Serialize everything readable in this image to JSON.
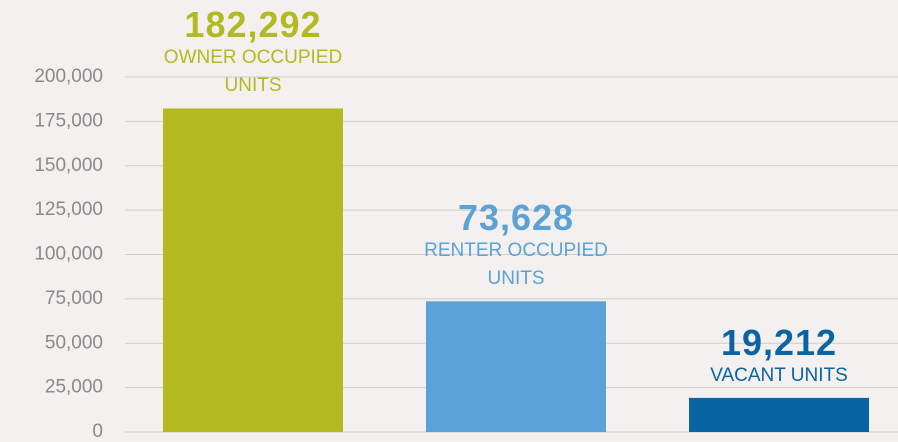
{
  "chart_data": {
    "type": "bar",
    "categories": [
      "OWNER OCCUPIED UNITS",
      "RENTER OCCUPIED UNITS",
      "VACANT UNITS"
    ],
    "values": [
      182292,
      73628,
      19212
    ],
    "value_labels": [
      "182,292",
      "73,628",
      "19,212"
    ],
    "colors": [
      "#b1bb1f",
      "#5ba2d6",
      "#0964a3"
    ],
    "ylim": [
      0,
      200000
    ],
    "yticks": [
      0,
      {
        "value": 25000,
        "label": "25,000"
      },
      {
        "value": 50000,
        "label": "50,000"
      },
      {
        "value": 75000,
        "label": "75,000"
      },
      {
        "value": 100000,
        "label": "100,000"
      },
      {
        "value": 125000,
        "label": "125,000"
      },
      {
        "value": 150000,
        "label": "150,000"
      },
      {
        "value": 175000,
        "label": "175,000"
      },
      {
        "value": 200000,
        "label": "200,000"
      }
    ],
    "grid": true
  }
}
